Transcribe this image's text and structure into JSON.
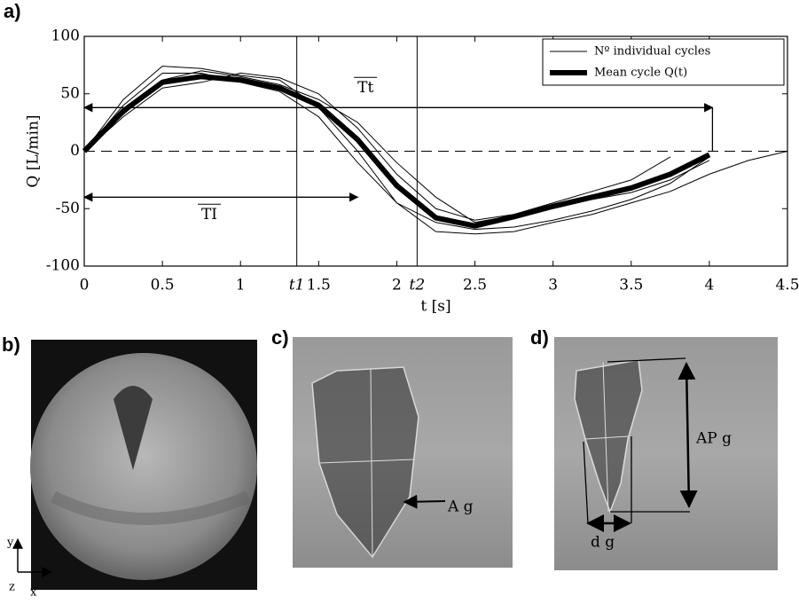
{
  "chart_data": {
    "type": "line",
    "panel_label": "a)",
    "x_label": "t [s]",
    "y_label": "Q [L/min]",
    "x": [
      0,
      0.25,
      0.5,
      0.75,
      1,
      1.25,
      1.5,
      1.75,
      2,
      2.25,
      2.5,
      2.75,
      3,
      3.25,
      3.5,
      3.75,
      4,
      4.25,
      4.5
    ],
    "series": [
      {
        "name": "Nº individual cycles",
        "color": "#000000",
        "cycles": [
          [
            0,
            45,
            74,
            72,
            66,
            62,
            38,
            0,
            -45,
            -62,
            -68,
            -66,
            -60,
            -52,
            -42,
            -28,
            -5,
            null,
            null
          ],
          [
            0,
            30,
            55,
            60,
            68,
            64,
            50,
            20,
            -20,
            -50,
            -60,
            -55,
            -45,
            -35,
            -25,
            -5,
            null,
            null,
            null
          ],
          [
            0,
            40,
            68,
            68,
            60,
            52,
            30,
            -10,
            -45,
            -70,
            -72,
            -70,
            -62,
            -55,
            -45,
            -35,
            -20,
            -8,
            0
          ],
          [
            0,
            32,
            62,
            70,
            65,
            58,
            45,
            25,
            -10,
            -40,
            -62,
            -56,
            -48,
            -42,
            -36,
            -25,
            -8,
            null,
            null
          ]
        ]
      },
      {
        "name": "Mean cycle Q(t)",
        "color": "#000000",
        "values": [
          0,
          35,
          60,
          65,
          62,
          55,
          40,
          10,
          -30,
          -58,
          -65,
          -57,
          -48,
          -40,
          -32,
          -20,
          -3,
          null,
          null
        ]
      }
    ],
    "xlim": [
      0,
      4.5
    ],
    "ylim": [
      -100,
      100
    ],
    "xticks": [
      0,
      0.5,
      1,
      1.5,
      2,
      2.5,
      3,
      3.5,
      4,
      4.5
    ],
    "yticks": [
      -100,
      -50,
      0,
      50,
      100
    ],
    "markers": [
      {
        "label": "t1",
        "x": 1.36
      },
      {
        "label": "t2",
        "x": 2.13
      }
    ],
    "spans": [
      {
        "label": "Tt",
        "x0": 0,
        "x1": 4.02,
        "y": 38
      },
      {
        "label": "TI",
        "x0": 0,
        "x1": 1.75,
        "y": -40
      }
    ]
  },
  "panels": {
    "b": {
      "label": "b)",
      "axes": [
        "y",
        "z",
        "x"
      ]
    },
    "c": {
      "label": "c)",
      "annotation": "A g"
    },
    "d": {
      "label": "d)",
      "annotations": [
        "AP g",
        "d g"
      ]
    }
  }
}
